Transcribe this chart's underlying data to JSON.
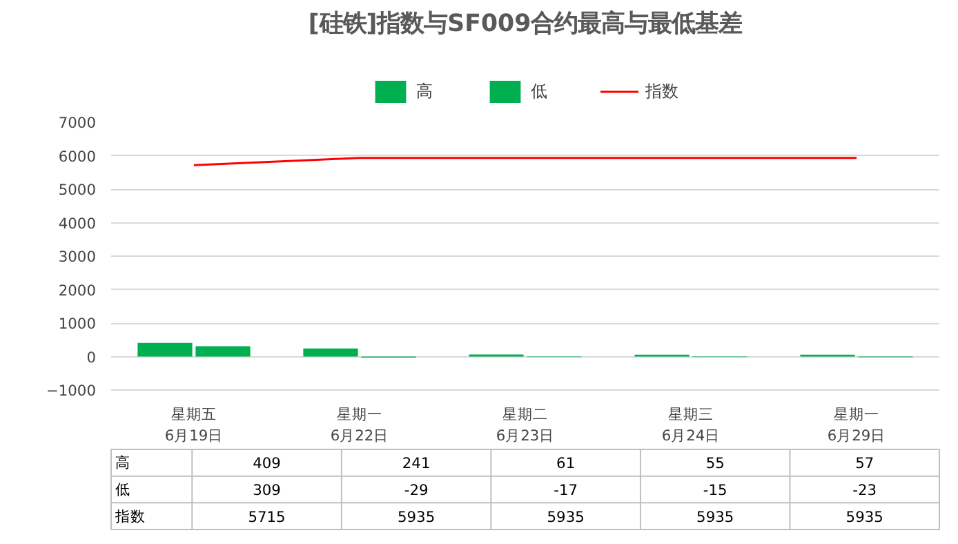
{
  "chart_data": {
    "type": "bar",
    "title": "[硅铁]指数与SF009合约最高与最低基差",
    "categories": [
      "星期五\n6月19日",
      "星期一\n6月22日",
      "星期二\n6月23日",
      "星期三\n6月24日",
      "星期一\n6月29日"
    ],
    "series": [
      {
        "name": "高",
        "color": "#00b050",
        "values": [
          409,
          241,
          61,
          55,
          57
        ]
      },
      {
        "name": "低",
        "color": "#00b050",
        "values": [
          309,
          -29,
          -17,
          -15,
          -23
        ]
      },
      {
        "name": "指数",
        "type": "line",
        "color": "#ff0000",
        "values": [
          5715,
          5935,
          5935,
          5935,
          5935
        ]
      }
    ],
    "ylim": [
      -1000,
      7000
    ],
    "yticks": [
      -1000,
      0,
      1000,
      2000,
      3000,
      4000,
      5000,
      6000,
      7000
    ],
    "grid": "y",
    "legend": "top",
    "data_labels": true
  }
}
